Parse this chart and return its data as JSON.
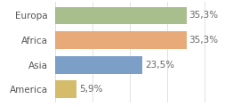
{
  "categories": [
    "America",
    "Asia",
    "Africa",
    "Europa"
  ],
  "values": [
    5.9,
    23.5,
    35.3,
    35.3
  ],
  "labels": [
    "5,9%",
    "23,5%",
    "35,3%",
    "35,3%"
  ],
  "bar_colors": [
    "#d4bc6a",
    "#7b9fc7",
    "#e8aa78",
    "#a8be8c"
  ],
  "xlim": [
    0,
    44
  ],
  "background_color": "#ffffff",
  "label_fontsize": 7.5,
  "tick_fontsize": 7.5,
  "bar_height": 0.72
}
